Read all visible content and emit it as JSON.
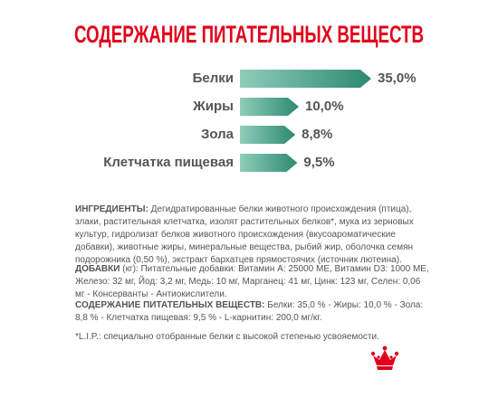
{
  "chart_data": {
    "type": "arrow-bar",
    "title": "СОДЕРЖАНИЕ ПИТАТЕЛЬНЫХ ВЕЩЕСТВ",
    "categories": [
      "Белки",
      "Жиры",
      "Зола",
      "Клетчатка пищевая"
    ],
    "values": [
      35.0,
      10.0,
      8.8,
      9.5
    ],
    "value_labels": [
      "35,0%",
      "10,0%",
      "8,8%",
      "9,5%"
    ],
    "color": [
      "#8fcdb9",
      "#2c8a6f"
    ]
  },
  "details": [
    {
      "label": "ИНГРЕДИЕНТЫ:",
      "text": "Дегидратированные белки животного происхождения (птица), злаки, растительная клетчатка, изолят растительных белков*, мука из зерновых культур, гидролизат белков животного происхождения (вкусоароматические добавки), животные жиры, минеральные вещества, рыбий жир, оболочка семян подорожника (0,50 %), экстракт бархатцев прямостоячих (источник лютеина)."
    },
    {
      "label": "ДОБАВКИ",
      "text": "(кг): Питательные добавки: Витамин A: 25000 МЕ, Витамин D3: 1000 МЕ, Железо: 32 мг, Йод: 3,2 мг, Медь: 10 мг, Марганец: 41 мг, Цинк: 123 мг, Селен: 0,06 мг - Консерванты - Антиокислители."
    },
    {
      "label": "СОДЕРЖАНИЕ ПИТАТЕЛЬНЫХ ВЕЩЕСТВ:",
      "text": "Белки: 35,0 % - Жиры: 10,0 % - Зола: 8,8 % - Клетчатка пищевая: 9,5 % - L-карнитин: 200,0 мг/кг."
    }
  ],
  "footnote": "*L.I.P.: специально отобранные белки с высокой степенью усвояемости."
}
